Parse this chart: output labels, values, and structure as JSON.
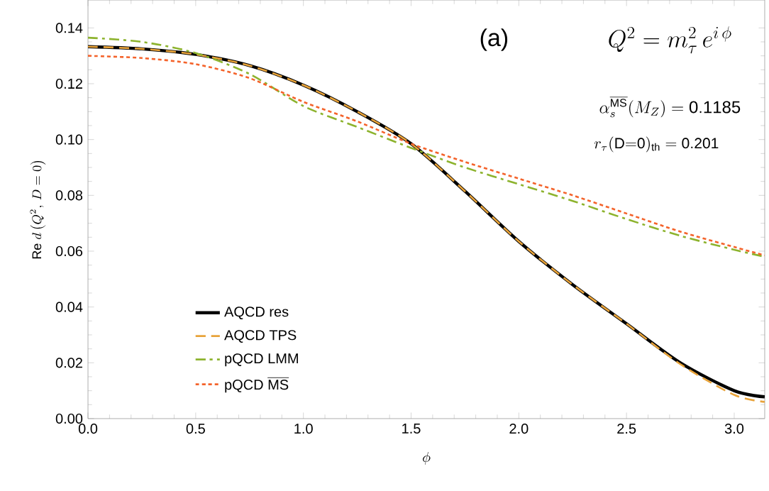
{
  "chart_data": {
    "type": "line",
    "xlabel": "\\phi",
    "ylabel": "\\mathrm{Re}\\ d\\left(Q^2,\\, D=0\\right)",
    "annotations": [
      "(a)",
      "Q^2 = m_\\tau^2\\, e^{i\\,\\phi}",
      "\\alpha_s^{\\overline{\\mathrm{MS}}}(M_Z) = \\mathrm{0.1185}",
      "r_\\tau\\mathrm{(D{=}0)_{th}} = \\mathrm{0.201}"
    ],
    "x": [
      0,
      0.25,
      0.5,
      0.75,
      1.0,
      1.25,
      1.5,
      1.75,
      2.0,
      2.25,
      2.5,
      2.75,
      3.0,
      3.1416
    ],
    "series": [
      {
        "name": "\\mathrm{AQCD\\ res}",
        "color": "#000000",
        "line_style": "solid",
        "values": [
          0.1333,
          0.1325,
          0.1305,
          0.1265,
          0.1195,
          0.11,
          0.0985,
          0.0815,
          0.0635,
          0.048,
          0.034,
          0.02,
          0.01,
          0.0078
        ]
      },
      {
        "name": "\\mathrm{AQCD\\ TPS}",
        "color": "#e8a33a",
        "line_style": "dashed",
        "values": [
          0.1333,
          0.1325,
          0.1305,
          0.1265,
          0.1195,
          0.11,
          0.0985,
          0.0815,
          0.0635,
          0.048,
          0.034,
          0.0195,
          0.0085,
          0.006
        ]
      },
      {
        "name": "\\mathrm{pQCD\\ LMM}",
        "color": "#8db32e",
        "line_style": "dashdot",
        "values": [
          0.1365,
          0.135,
          0.131,
          0.1235,
          0.112,
          0.1045,
          0.097,
          0.09,
          0.084,
          0.078,
          0.0715,
          0.0655,
          0.0605,
          0.058
        ]
      },
      {
        "name": "\\mathrm{pQCD}\\ \\overline{\\mathrm{MS}}",
        "color": "#f4632b",
        "line_style": "dotted",
        "values": [
          0.13,
          0.1292,
          0.127,
          0.122,
          0.1135,
          0.1065,
          0.0985,
          0.092,
          0.086,
          0.08,
          0.0735,
          0.067,
          0.0615,
          0.0585
        ]
      }
    ],
    "xlim": [
      0,
      3.1416
    ],
    "ylim": [
      0,
      0.15
    ],
    "xticks": [
      {
        "value": 0,
        "label": "0.0"
      },
      {
        "value": 0.5,
        "label": "0.5"
      },
      {
        "value": 1.0,
        "label": "1.0"
      },
      {
        "value": 1.5,
        "label": "1.5"
      },
      {
        "value": 2.0,
        "label": "2.0"
      },
      {
        "value": 2.5,
        "label": "2.5"
      },
      {
        "value": 3.0,
        "label": "3.0"
      }
    ],
    "yticks": [
      {
        "value": 0,
        "label": "0.00"
      },
      {
        "value": 0.02,
        "label": "0.02"
      },
      {
        "value": 0.04,
        "label": "0.04"
      },
      {
        "value": 0.06,
        "label": "0.06"
      },
      {
        "value": 0.08,
        "label": "0.08"
      },
      {
        "value": 0.1,
        "label": "0.10"
      },
      {
        "value": 0.12,
        "label": "0.12"
      },
      {
        "value": 0.14,
        "label": "0.14"
      }
    ],
    "grid": false,
    "legend": "bottom left",
    "marker": "none"
  }
}
